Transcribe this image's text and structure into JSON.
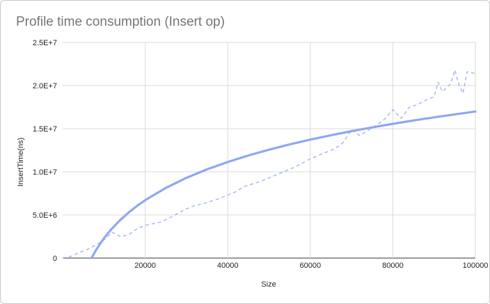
{
  "chart_data": {
    "type": "line",
    "title": "Profile time consumption (Insert op)",
    "xlabel": "Size",
    "ylabel": "InsertTime(ns)",
    "xlim": [
      0,
      100000
    ],
    "ylim": [
      0,
      25000000
    ],
    "x_ticks": [
      20000,
      40000,
      60000,
      80000,
      100000
    ],
    "x_tick_labels": [
      "20000",
      "40000",
      "60000",
      "80000",
      "100000"
    ],
    "y_ticks": [
      0,
      5000000,
      10000000,
      15000000,
      20000000,
      25000000
    ],
    "y_tick_labels": [
      "0",
      "5.0E+6",
      "1.0E+7",
      "1.5E+7",
      "2.0E+7",
      "2.5E+7"
    ],
    "grid": true,
    "legend": "none",
    "colors": {
      "series": "#8ea7f3",
      "trend": "#8ea7f3",
      "grid": "#d9d9d9",
      "title": "#757575"
    },
    "series": [
      {
        "style": "dashed",
        "x": [
          0,
          2000,
          4000,
          6000,
          8000,
          10000,
          12000,
          14000,
          16000,
          18000,
          20000,
          22000,
          24000,
          26000,
          28000,
          30000,
          32000,
          34000,
          36000,
          38000,
          40000,
          42000,
          44000,
          46000,
          48000,
          50000,
          52000,
          54000,
          56000,
          58000,
          60000,
          62000,
          64000,
          66000,
          68000,
          70000,
          72000,
          74000,
          76000,
          78000,
          80000,
          82000,
          84000,
          86000,
          88000,
          90000,
          91000,
          92000,
          94000,
          95000,
          96000,
          97000,
          98000,
          100000
        ],
        "values": [
          0,
          200000,
          650000,
          1000000,
          1500000,
          2100000,
          3000000,
          2500000,
          2700000,
          3400000,
          3800000,
          4000000,
          4200000,
          4700000,
          5200000,
          5700000,
          6100000,
          6300000,
          6600000,
          6900000,
          7300000,
          7700000,
          8300000,
          8600000,
          8900000,
          9300000,
          9700000,
          10100000,
          10500000,
          11000000,
          11500000,
          11900000,
          12300000,
          12700000,
          13400000,
          14900000,
          14200000,
          14800000,
          15400000,
          16100000,
          17200000,
          16200000,
          17500000,
          17800000,
          18300000,
          18700000,
          20400000,
          19300000,
          20200000,
          21800000,
          20100000,
          19100000,
          21600000,
          21400000
        ]
      },
      {
        "style": "trendline",
        "x": [
          7000,
          8000,
          9000,
          10000,
          11000,
          12000,
          14000,
          16000,
          18000,
          20000,
          25000,
          30000,
          35000,
          40000,
          45000,
          50000,
          55000,
          60000,
          65000,
          70000,
          75000,
          80000,
          85000,
          90000,
          95000,
          100000
        ],
        "values": [
          0,
          852000,
          1608000,
          2284000,
          2895000,
          3452000,
          4436000,
          5287000,
          6039000,
          6710000,
          8138000,
          9303000,
          10288000,
          11140000,
          11894000,
          12568000,
          13177000,
          13732000,
          14242000,
          14714000,
          15153000,
          15565000,
          15952000,
          16317000,
          16663000,
          16992000
        ]
      }
    ]
  }
}
